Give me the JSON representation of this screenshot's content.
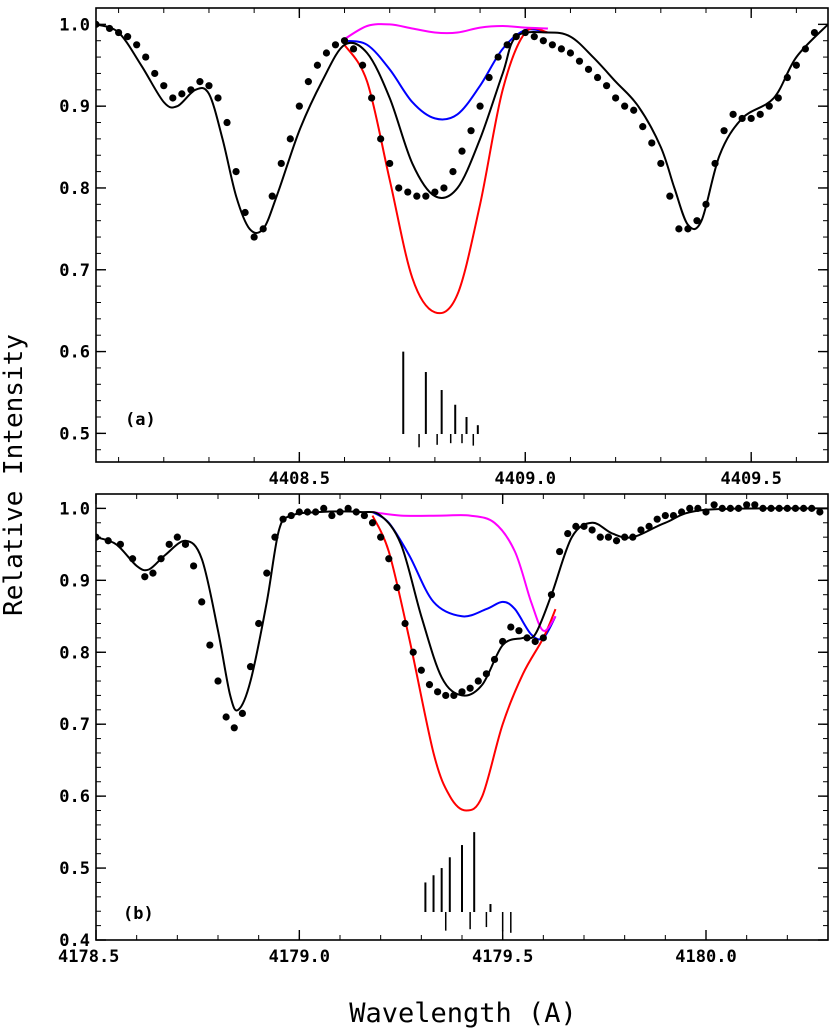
{
  "ylabel": "Relative Intensity",
  "xlabel": "Wavelength (A)",
  "chart_data": [
    {
      "type": "line",
      "panel_label": "(a)",
      "xlim": [
        4408.05,
        4409.67
      ],
      "ylim": [
        0.465,
        1.02
      ],
      "xticks": [
        4408.5,
        4409.0,
        4409.5
      ],
      "xtick_labels": [
        "4408.5",
        "4409.0",
        "4409.5"
      ],
      "yticks": [
        0.5,
        0.6,
        0.7,
        0.8,
        0.9,
        1.0
      ],
      "ytick_labels": [
        "0.5",
        "0.6",
        "0.7",
        "0.8",
        "0.9",
        "1.0"
      ],
      "colors": {
        "fit": "#000000",
        "blue": "#0000ff",
        "red": "#ff0000",
        "magenta": "#ff00ff"
      },
      "series": [
        {
          "kind": "fit",
          "color": "#000000",
          "points": [
            [
              4408.05,
              1.0
            ],
            [
              4408.1,
              0.99
            ],
            [
              4408.15,
              0.95
            ],
            [
              4408.2,
              0.905
            ],
            [
              4408.23,
              0.9
            ],
            [
              4408.27,
              0.92
            ],
            [
              4408.3,
              0.915
            ],
            [
              4408.33,
              0.86
            ],
            [
              4408.36,
              0.79
            ],
            [
              4408.39,
              0.75
            ],
            [
              4408.42,
              0.75
            ],
            [
              4408.45,
              0.79
            ],
            [
              4408.5,
              0.87
            ],
            [
              4408.55,
              0.93
            ],
            [
              4408.6,
              0.975
            ],
            [
              4408.65,
              0.965
            ],
            [
              4408.7,
              0.91
            ],
            [
              4408.75,
              0.83
            ],
            [
              4408.8,
              0.79
            ],
            [
              4408.85,
              0.8
            ],
            [
              4408.9,
              0.86
            ],
            [
              4408.95,
              0.94
            ],
            [
              4408.98,
              0.985
            ],
            [
              4409.05,
              0.99
            ],
            [
              4409.1,
              0.985
            ],
            [
              4409.15,
              0.96
            ],
            [
              4409.2,
              0.93
            ],
            [
              4409.25,
              0.9
            ],
            [
              4409.3,
              0.85
            ],
            [
              4409.33,
              0.8
            ],
            [
              4409.36,
              0.755
            ],
            [
              4409.39,
              0.76
            ],
            [
              4409.43,
              0.84
            ],
            [
              4409.48,
              0.885
            ],
            [
              4409.55,
              0.91
            ],
            [
              4409.6,
              0.96
            ],
            [
              4409.67,
              1.0
            ]
          ]
        },
        {
          "kind": "model",
          "color": "#0000ff",
          "points": [
            [
              4408.6,
              0.98
            ],
            [
              4408.65,
              0.975
            ],
            [
              4408.7,
              0.945
            ],
            [
              4408.75,
              0.905
            ],
            [
              4408.8,
              0.885
            ],
            [
              4408.85,
              0.89
            ],
            [
              4408.9,
              0.925
            ],
            [
              4408.95,
              0.97
            ],
            [
              4409.0,
              0.993
            ],
            [
              4409.05,
              0.99
            ]
          ]
        },
        {
          "kind": "model",
          "color": "#ff0000",
          "points": [
            [
              4408.6,
              0.975
            ],
            [
              4408.65,
              0.93
            ],
            [
              4408.7,
              0.81
            ],
            [
              4408.75,
              0.69
            ],
            [
              4408.8,
              0.648
            ],
            [
              4408.85,
              0.67
            ],
            [
              4408.9,
              0.78
            ],
            [
              4408.95,
              0.92
            ],
            [
              4409.0,
              0.99
            ],
            [
              4409.05,
              0.99
            ]
          ]
        },
        {
          "kind": "model",
          "color": "#ff00ff",
          "points": [
            [
              4408.6,
              0.982
            ],
            [
              4408.65,
              0.998
            ],
            [
              4408.7,
              1.0
            ],
            [
              4408.75,
              0.995
            ],
            [
              4408.8,
              0.99
            ],
            [
              4408.85,
              0.99
            ],
            [
              4408.9,
              0.996
            ],
            [
              4408.95,
              0.998
            ],
            [
              4409.0,
              0.996
            ],
            [
              4409.05,
              0.995
            ]
          ]
        }
      ],
      "observed": {
        "x": [
          4408.05,
          4408.08,
          4408.1,
          4408.12,
          4408.14,
          4408.16,
          4408.18,
          4408.2,
          4408.22,
          4408.24,
          4408.26,
          4408.28,
          4408.3,
          4408.32,
          4408.34,
          4408.36,
          4408.38,
          4408.4,
          4408.42,
          4408.44,
          4408.46,
          4408.48,
          4408.5,
          4408.52,
          4408.54,
          4408.56,
          4408.58,
          4408.6,
          4408.62,
          4408.64,
          4408.66,
          4408.68,
          4408.7,
          4408.72,
          4408.74,
          4408.76,
          4408.78,
          4408.8,
          4408.82,
          4408.84,
          4408.86,
          4408.88,
          4408.9,
          4408.92,
          4408.94,
          4408.96,
          4408.98,
          4409.0,
          4409.02,
          4409.04,
          4409.06,
          4409.08,
          4409.1,
          4409.12,
          4409.14,
          4409.16,
          4409.18,
          4409.2,
          4409.22,
          4409.24,
          4409.26,
          4409.28,
          4409.3,
          4409.32,
          4409.34,
          4409.36,
          4409.38,
          4409.4,
          4409.42,
          4409.44,
          4409.46,
          4409.48,
          4409.5,
          4409.52,
          4409.54,
          4409.56,
          4409.58,
          4409.6,
          4409.62,
          4409.64
        ],
        "y": [
          1.0,
          0.995,
          0.99,
          0.985,
          0.975,
          0.96,
          0.94,
          0.925,
          0.91,
          0.915,
          0.92,
          0.93,
          0.925,
          0.91,
          0.88,
          0.82,
          0.77,
          0.74,
          0.75,
          0.79,
          0.83,
          0.86,
          0.9,
          0.93,
          0.95,
          0.965,
          0.975,
          0.98,
          0.97,
          0.95,
          0.91,
          0.86,
          0.83,
          0.8,
          0.795,
          0.79,
          0.79,
          0.795,
          0.8,
          0.82,
          0.845,
          0.87,
          0.9,
          0.935,
          0.96,
          0.975,
          0.985,
          0.99,
          0.985,
          0.98,
          0.975,
          0.97,
          0.965,
          0.955,
          0.945,
          0.935,
          0.925,
          0.91,
          0.9,
          0.895,
          0.875,
          0.855,
          0.83,
          0.79,
          0.75,
          0.75,
          0.76,
          0.78,
          0.83,
          0.87,
          0.89,
          0.885,
          0.885,
          0.89,
          0.9,
          0.91,
          0.935,
          0.95,
          0.97,
          0.99
        ]
      },
      "stick_lines": {
        "x": [
          4408.73,
          4408.78,
          4408.815,
          4408.845,
          4408.87,
          4408.895
        ],
        "y": [
          0.6,
          0.575,
          0.553,
          0.535,
          0.52,
          0.51
        ],
        "minor_x": [
          4408.765,
          4408.805,
          4408.835,
          4408.86,
          4408.885
        ],
        "minor_y": [
          0.483,
          0.486,
          0.488,
          0.488,
          0.485
        ]
      }
    },
    {
      "type": "line",
      "panel_label": "(b)",
      "xlim": [
        4178.5,
        4180.3
      ],
      "ylim": [
        0.4,
        1.02
      ],
      "xticks": [
        4178.5,
        4179.0,
        4179.5,
        4180.0
      ],
      "xtick_labels": [
        "4178.5",
        "4179.0",
        "4179.5",
        "4180.0"
      ],
      "yticks": [
        0.4,
        0.5,
        0.6,
        0.7,
        0.8,
        0.9,
        1.0
      ],
      "ytick_labels": [
        "0.4",
        "0.5",
        "0.6",
        "0.7",
        "0.8",
        "0.9",
        "1.0"
      ],
      "colors": {
        "fit": "#000000",
        "blue": "#0000ff",
        "red": "#ff0000",
        "magenta": "#ff00ff"
      },
      "series": [
        {
          "kind": "fit",
          "color": "#000000",
          "points": [
            [
              4178.5,
              0.96
            ],
            [
              4178.55,
              0.95
            ],
            [
              4178.6,
              0.92
            ],
            [
              4178.63,
              0.915
            ],
            [
              4178.67,
              0.935
            ],
            [
              4178.72,
              0.955
            ],
            [
              4178.76,
              0.93
            ],
            [
              4178.8,
              0.83
            ],
            [
              4178.83,
              0.74
            ],
            [
              4178.85,
              0.72
            ],
            [
              4178.88,
              0.76
            ],
            [
              4178.92,
              0.87
            ],
            [
              4178.95,
              0.97
            ],
            [
              4178.98,
              0.99
            ],
            [
              4179.05,
              0.995
            ],
            [
              4179.15,
              0.995
            ],
            [
              4179.2,
              0.99
            ],
            [
              4179.25,
              0.95
            ],
            [
              4179.3,
              0.85
            ],
            [
              4179.35,
              0.765
            ],
            [
              4179.4,
              0.74
            ],
            [
              4179.45,
              0.755
            ],
            [
              4179.5,
              0.81
            ],
            [
              4179.55,
              0.82
            ],
            [
              4179.58,
              0.825
            ],
            [
              4179.62,
              0.88
            ],
            [
              4179.67,
              0.96
            ],
            [
              4179.72,
              0.98
            ],
            [
              4179.77,
              0.965
            ],
            [
              4179.82,
              0.96
            ],
            [
              4179.9,
              0.98
            ],
            [
              4180.0,
              0.998
            ],
            [
              4180.3,
              1.0
            ]
          ]
        },
        {
          "kind": "model",
          "color": "#0000ff",
          "points": [
            [
              4179.18,
              0.995
            ],
            [
              4179.22,
              0.98
            ],
            [
              4179.27,
              0.935
            ],
            [
              4179.33,
              0.87
            ],
            [
              4179.4,
              0.85
            ],
            [
              4179.46,
              0.86
            ],
            [
              4179.5,
              0.87
            ],
            [
              4179.53,
              0.86
            ],
            [
              4179.57,
              0.825
            ],
            [
              4179.6,
              0.82
            ],
            [
              4179.63,
              0.85
            ]
          ]
        },
        {
          "kind": "model",
          "color": "#ff0000",
          "points": [
            [
              4179.18,
              0.99
            ],
            [
              4179.22,
              0.94
            ],
            [
              4179.27,
              0.82
            ],
            [
              4179.33,
              0.66
            ],
            [
              4179.37,
              0.6
            ],
            [
              4179.41,
              0.58
            ],
            [
              4179.45,
              0.6
            ],
            [
              4179.5,
              0.7
            ],
            [
              4179.55,
              0.77
            ],
            [
              4179.6,
              0.82
            ],
            [
              4179.63,
              0.86
            ]
          ]
        },
        {
          "kind": "model",
          "color": "#ff00ff",
          "points": [
            [
              4179.18,
              0.995
            ],
            [
              4179.25,
              0.99
            ],
            [
              4179.35,
              0.99
            ],
            [
              4179.42,
              0.99
            ],
            [
              4179.48,
              0.98
            ],
            [
              4179.53,
              0.94
            ],
            [
              4179.57,
              0.87
            ],
            [
              4179.6,
              0.83
            ],
            [
              4179.63,
              0.85
            ]
          ]
        }
      ],
      "observed": {
        "x": [
          4178.5,
          4178.53,
          4178.56,
          4178.59,
          4178.62,
          4178.64,
          4178.66,
          4178.68,
          4178.7,
          4178.72,
          4178.74,
          4178.76,
          4178.78,
          4178.8,
          4178.82,
          4178.84,
          4178.86,
          4178.88,
          4178.9,
          4178.92,
          4178.94,
          4178.96,
          4178.98,
          4179.0,
          4179.02,
          4179.04,
          4179.06,
          4179.08,
          4179.1,
          4179.12,
          4179.14,
          4179.16,
          4179.18,
          4179.2,
          4179.22,
          4179.24,
          4179.26,
          4179.28,
          4179.3,
          4179.32,
          4179.34,
          4179.36,
          4179.38,
          4179.4,
          4179.42,
          4179.44,
          4179.46,
          4179.48,
          4179.5,
          4179.52,
          4179.54,
          4179.56,
          4179.58,
          4179.6,
          4179.62,
          4179.64,
          4179.66,
          4179.68,
          4179.7,
          4179.72,
          4179.74,
          4179.76,
          4179.78,
          4179.8,
          4179.82,
          4179.84,
          4179.86,
          4179.88,
          4179.9,
          4179.92,
          4179.94,
          4179.96,
          4179.98,
          4180.0,
          4180.02,
          4180.04,
          4180.06,
          4180.08,
          4180.1,
          4180.12,
          4180.14,
          4180.16,
          4180.18,
          4180.2,
          4180.22,
          4180.24,
          4180.26,
          4180.28
        ],
        "y": [
          0.96,
          0.955,
          0.95,
          0.93,
          0.905,
          0.91,
          0.93,
          0.95,
          0.96,
          0.95,
          0.92,
          0.87,
          0.81,
          0.76,
          0.71,
          0.695,
          0.715,
          0.78,
          0.84,
          0.91,
          0.96,
          0.985,
          0.99,
          0.995,
          0.995,
          0.995,
          1.0,
          0.99,
          0.995,
          1.0,
          0.995,
          0.99,
          0.98,
          0.96,
          0.93,
          0.89,
          0.84,
          0.8,
          0.775,
          0.755,
          0.745,
          0.74,
          0.74,
          0.745,
          0.75,
          0.76,
          0.77,
          0.79,
          0.815,
          0.835,
          0.83,
          0.82,
          0.815,
          0.82,
          0.88,
          0.94,
          0.965,
          0.975,
          0.975,
          0.97,
          0.96,
          0.96,
          0.955,
          0.96,
          0.96,
          0.97,
          0.975,
          0.985,
          0.99,
          0.99,
          0.995,
          1.0,
          1.0,
          0.995,
          1.005,
          1.0,
          1.0,
          1.0,
          1.005,
          1.005,
          1.0,
          1.0,
          1.0,
          1.0,
          1.0,
          1.0,
          1.0,
          0.995
        ]
      },
      "stick_lines": {
        "x": [
          4179.31,
          4179.33,
          4179.35,
          4179.37,
          4179.4,
          4179.43,
          4179.47
        ],
        "y": [
          0.48,
          0.49,
          0.5,
          0.515,
          0.532,
          0.55,
          0.45
        ],
        "minor_x": [
          4179.36,
          4179.42,
          4179.46,
          4179.5,
          4179.52
        ],
        "minor_y": [
          0.413,
          0.415,
          0.418,
          0.412,
          0.41
        ]
      }
    }
  ]
}
